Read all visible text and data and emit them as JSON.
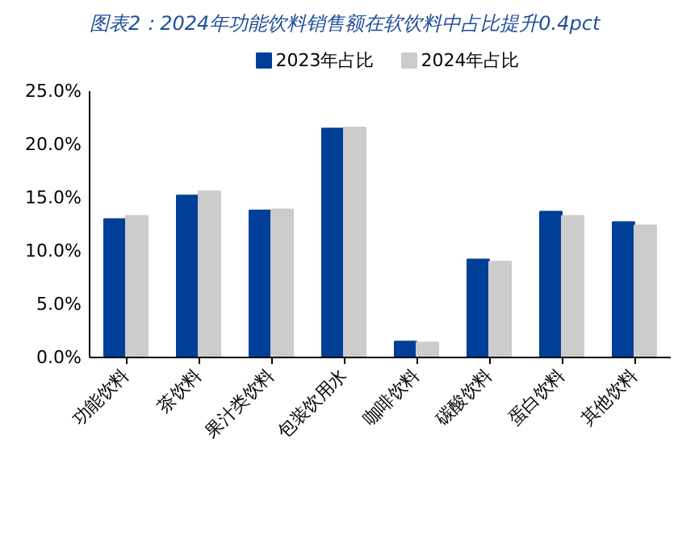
{
  "chart_data": {
    "type": "bar",
    "title": "图表2：2024年功能饮料销售额在软饮料中占比提升0.4pct",
    "categories": [
      "功能饮料",
      "茶饮料",
      "果汁类饮料",
      "包装饮用水",
      "咖啡饮料",
      "碳酸饮料",
      "蛋白饮料",
      "其他饮料"
    ],
    "series": [
      {
        "name": "2023年占比",
        "color": "#003f98",
        "values": [
          13.0,
          15.2,
          13.8,
          21.5,
          1.5,
          9.2,
          13.7,
          12.7
        ]
      },
      {
        "name": "2024年占比",
        "color": "#cccccc",
        "values": [
          13.3,
          15.6,
          13.9,
          21.6,
          1.4,
          9.0,
          13.3,
          12.4
        ]
      }
    ],
    "ylim": [
      0,
      25
    ],
    "yticks": [
      {
        "value": 0,
        "label": "0.0%"
      },
      {
        "value": 5,
        "label": "5.0%"
      },
      {
        "value": 10,
        "label": "10.0%"
      },
      {
        "value": 15,
        "label": "15.0%"
      },
      {
        "value": 20,
        "label": "20.0%"
      },
      {
        "value": 25,
        "label": "25.0%"
      }
    ],
    "grid": false,
    "legend": "top"
  }
}
